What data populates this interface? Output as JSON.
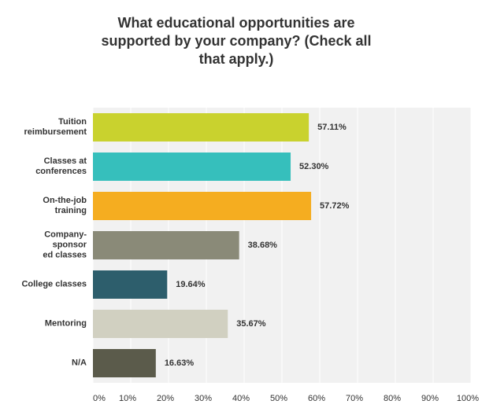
{
  "chart_data": {
    "type": "barh",
    "title": "What educational opportunities are\nsupported by your company? (Check all\nthat apply.)",
    "categories": [
      "Tuition\nreimbursement",
      "Classes at\nconferences",
      "On-the-job\ntraining",
      "Company-\nsponsor\ned classes",
      "College classes",
      "Mentoring",
      "N/A"
    ],
    "values": [
      57.11,
      52.3,
      57.72,
      38.68,
      19.64,
      35.67,
      16.63
    ],
    "value_labels": [
      "57.11%",
      "52.30%",
      "57.72%",
      "38.68%",
      "19.64%",
      "35.67%",
      "16.63%"
    ],
    "colors": [
      "#c9d22e",
      "#36bfbc",
      "#f5ad20",
      "#8a8a78",
      "#2d5e6c",
      "#d1d0c1",
      "#5b5b4b"
    ],
    "xlim": [
      0,
      100
    ],
    "xticks": [
      {
        "value": 0,
        "label": "0%"
      },
      {
        "value": 10,
        "label": "10%"
      },
      {
        "value": 20,
        "label": "20%"
      },
      {
        "value": 30,
        "label": "30%"
      },
      {
        "value": 40,
        "label": "40%"
      },
      {
        "value": 50,
        "label": "50%"
      },
      {
        "value": 60,
        "label": "60%"
      },
      {
        "value": 70,
        "label": "70%"
      },
      {
        "value": 80,
        "label": "80%"
      },
      {
        "value": 90,
        "label": "90%"
      },
      {
        "value": 100,
        "label": "100%"
      }
    ],
    "grid": true
  }
}
